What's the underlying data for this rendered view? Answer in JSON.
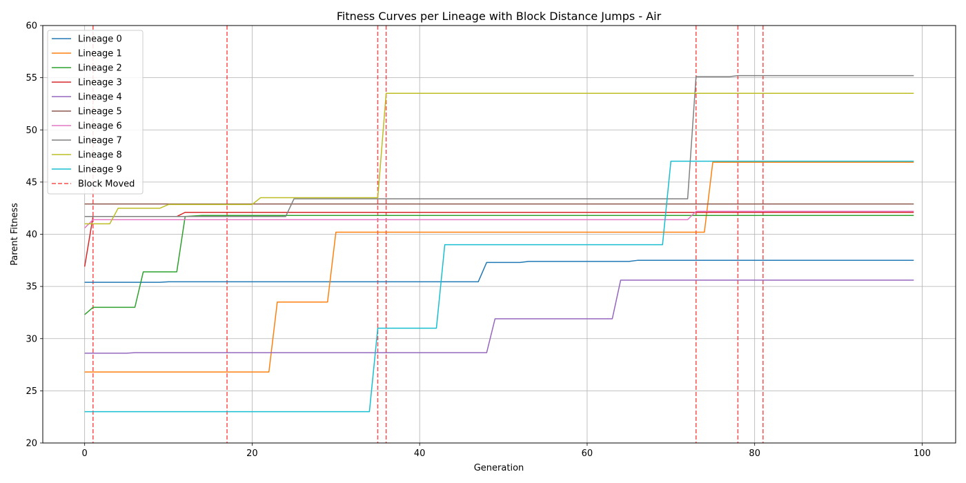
{
  "chart_data": {
    "type": "line",
    "title": "Fitness Curves per Lineage with Block Distance Jumps - Air",
    "xlabel": "Generation",
    "ylabel": "Parent Fitness",
    "xlim": [
      -5,
      104
    ],
    "ylim": [
      20,
      60
    ],
    "xticks": [
      0,
      20,
      40,
      60,
      80,
      100
    ],
    "yticks": [
      20,
      25,
      30,
      35,
      40,
      45,
      50,
      55,
      60
    ],
    "grid": true,
    "legend_position": "top-left",
    "series": [
      {
        "name": "Lineage 0",
        "color": "#1f77b4",
        "points": [
          [
            0,
            35.4
          ],
          [
            9,
            35.4
          ],
          [
            10,
            35.45
          ],
          [
            47,
            35.45
          ],
          [
            48,
            37.3
          ],
          [
            52,
            37.3
          ],
          [
            53,
            37.4
          ],
          [
            65,
            37.4
          ],
          [
            66,
            37.5
          ],
          [
            99,
            37.5
          ]
        ]
      },
      {
        "name": "Lineage 1",
        "color": "#ff7f0e",
        "points": [
          [
            0,
            26.8
          ],
          [
            22,
            26.8
          ],
          [
            23,
            33.5
          ],
          [
            29,
            33.5
          ],
          [
            30,
            40.2
          ],
          [
            74,
            40.2
          ],
          [
            75,
            46.9
          ],
          [
            99,
            46.9
          ]
        ]
      },
      {
        "name": "Lineage 2",
        "color": "#2ca02c",
        "points": [
          [
            0,
            32.3
          ],
          [
            1,
            33.0
          ],
          [
            6,
            33.0
          ],
          [
            7,
            36.4
          ],
          [
            11,
            36.4
          ],
          [
            12,
            41.7
          ],
          [
            14,
            41.8
          ],
          [
            99,
            41.8
          ]
        ]
      },
      {
        "name": "Lineage 3",
        "color": "#d62728",
        "points": [
          [
            0,
            36.9
          ],
          [
            1,
            41.7
          ],
          [
            11,
            41.7
          ],
          [
            12,
            42.1
          ],
          [
            99,
            42.1
          ]
        ]
      },
      {
        "name": "Lineage 4",
        "color": "#9467bd",
        "points": [
          [
            0,
            28.6
          ],
          [
            5,
            28.6
          ],
          [
            6,
            28.65
          ],
          [
            48,
            28.65
          ],
          [
            49,
            31.9
          ],
          [
            63,
            31.9
          ],
          [
            64,
            35.6
          ],
          [
            99,
            35.6
          ]
        ]
      },
      {
        "name": "Lineage 5",
        "color": "#8c564b",
        "points": [
          [
            0,
            42.9
          ],
          [
            99,
            42.9
          ]
        ]
      },
      {
        "name": "Lineage 6",
        "color": "#e377c2",
        "points": [
          [
            0,
            40.6
          ],
          [
            1,
            41.4
          ],
          [
            72,
            41.4
          ],
          [
            73,
            42.2
          ],
          [
            99,
            42.2
          ]
        ]
      },
      {
        "name": "Lineage 7",
        "color": "#7f7f7f",
        "points": [
          [
            0,
            41.7
          ],
          [
            24,
            41.7
          ],
          [
            25,
            43.4
          ],
          [
            72,
            43.4
          ],
          [
            73,
            55.1
          ],
          [
            77,
            55.1
          ],
          [
            78,
            55.2
          ],
          [
            99,
            55.2
          ]
        ]
      },
      {
        "name": "Lineage 8",
        "color": "#bcbd22",
        "points": [
          [
            0,
            41.0
          ],
          [
            3,
            41.0
          ],
          [
            4,
            42.5
          ],
          [
            9,
            42.5
          ],
          [
            10,
            42.85
          ],
          [
            20,
            42.85
          ],
          [
            21,
            43.5
          ],
          [
            35,
            43.5
          ],
          [
            36,
            53.5
          ],
          [
            99,
            53.5
          ]
        ]
      },
      {
        "name": "Lineage 9",
        "color": "#17becf",
        "points": [
          [
            0,
            23.0
          ],
          [
            34,
            23.0
          ],
          [
            35,
            31.0
          ],
          [
            42,
            31.0
          ],
          [
            43,
            39.0
          ],
          [
            69,
            39.0
          ],
          [
            70,
            47.0
          ],
          [
            99,
            47.0
          ]
        ]
      }
    ],
    "block_moved": {
      "name": "Block Moved",
      "color": "#ff0000",
      "generations": [
        1,
        17,
        35,
        36,
        73,
        78,
        81
      ]
    }
  }
}
